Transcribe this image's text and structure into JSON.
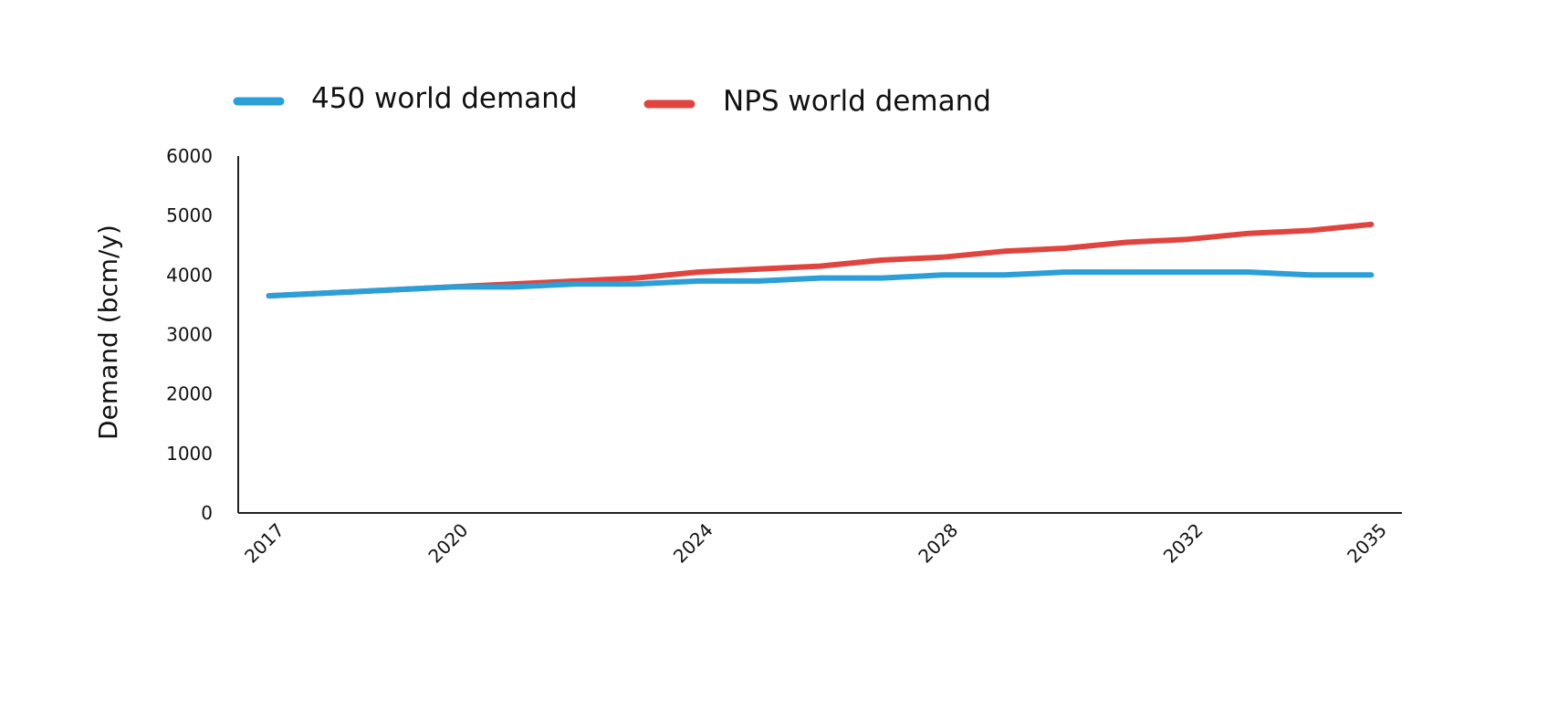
{
  "chart_data": {
    "type": "line",
    "title": "",
    "xlabel": "",
    "ylabel": "Demand (bcm/y)",
    "x": [
      2017,
      2018,
      2019,
      2020,
      2021,
      2022,
      2023,
      2024,
      2025,
      2026,
      2027,
      2028,
      2029,
      2030,
      2031,
      2032,
      2033,
      2034,
      2035
    ],
    "xticks": [
      2017,
      2020,
      2024,
      2028,
      2032,
      2035
    ],
    "xlim": [
      2016.5,
      2035.5
    ],
    "ylim": [
      0,
      6000
    ],
    "yticks": [
      0,
      1000,
      2000,
      3000,
      4000,
      5000,
      6000
    ],
    "grid": false,
    "legend_position": "top",
    "series": [
      {
        "name": "450 world demand",
        "color": "#2a9fd8",
        "values": [
          3650,
          3700,
          3750,
          3800,
          3800,
          3850,
          3850,
          3900,
          3900,
          3950,
          3950,
          4000,
          4000,
          4050,
          4050,
          4050,
          4050,
          4000,
          4000
        ]
      },
      {
        "name": "NPS world demand",
        "color": "#e0443f",
        "values": [
          3650,
          3700,
          3750,
          3800,
          3850,
          3900,
          3950,
          4050,
          4100,
          4150,
          4250,
          4300,
          4400,
          4450,
          4550,
          4600,
          4700,
          4750,
          4850
        ]
      }
    ]
  }
}
